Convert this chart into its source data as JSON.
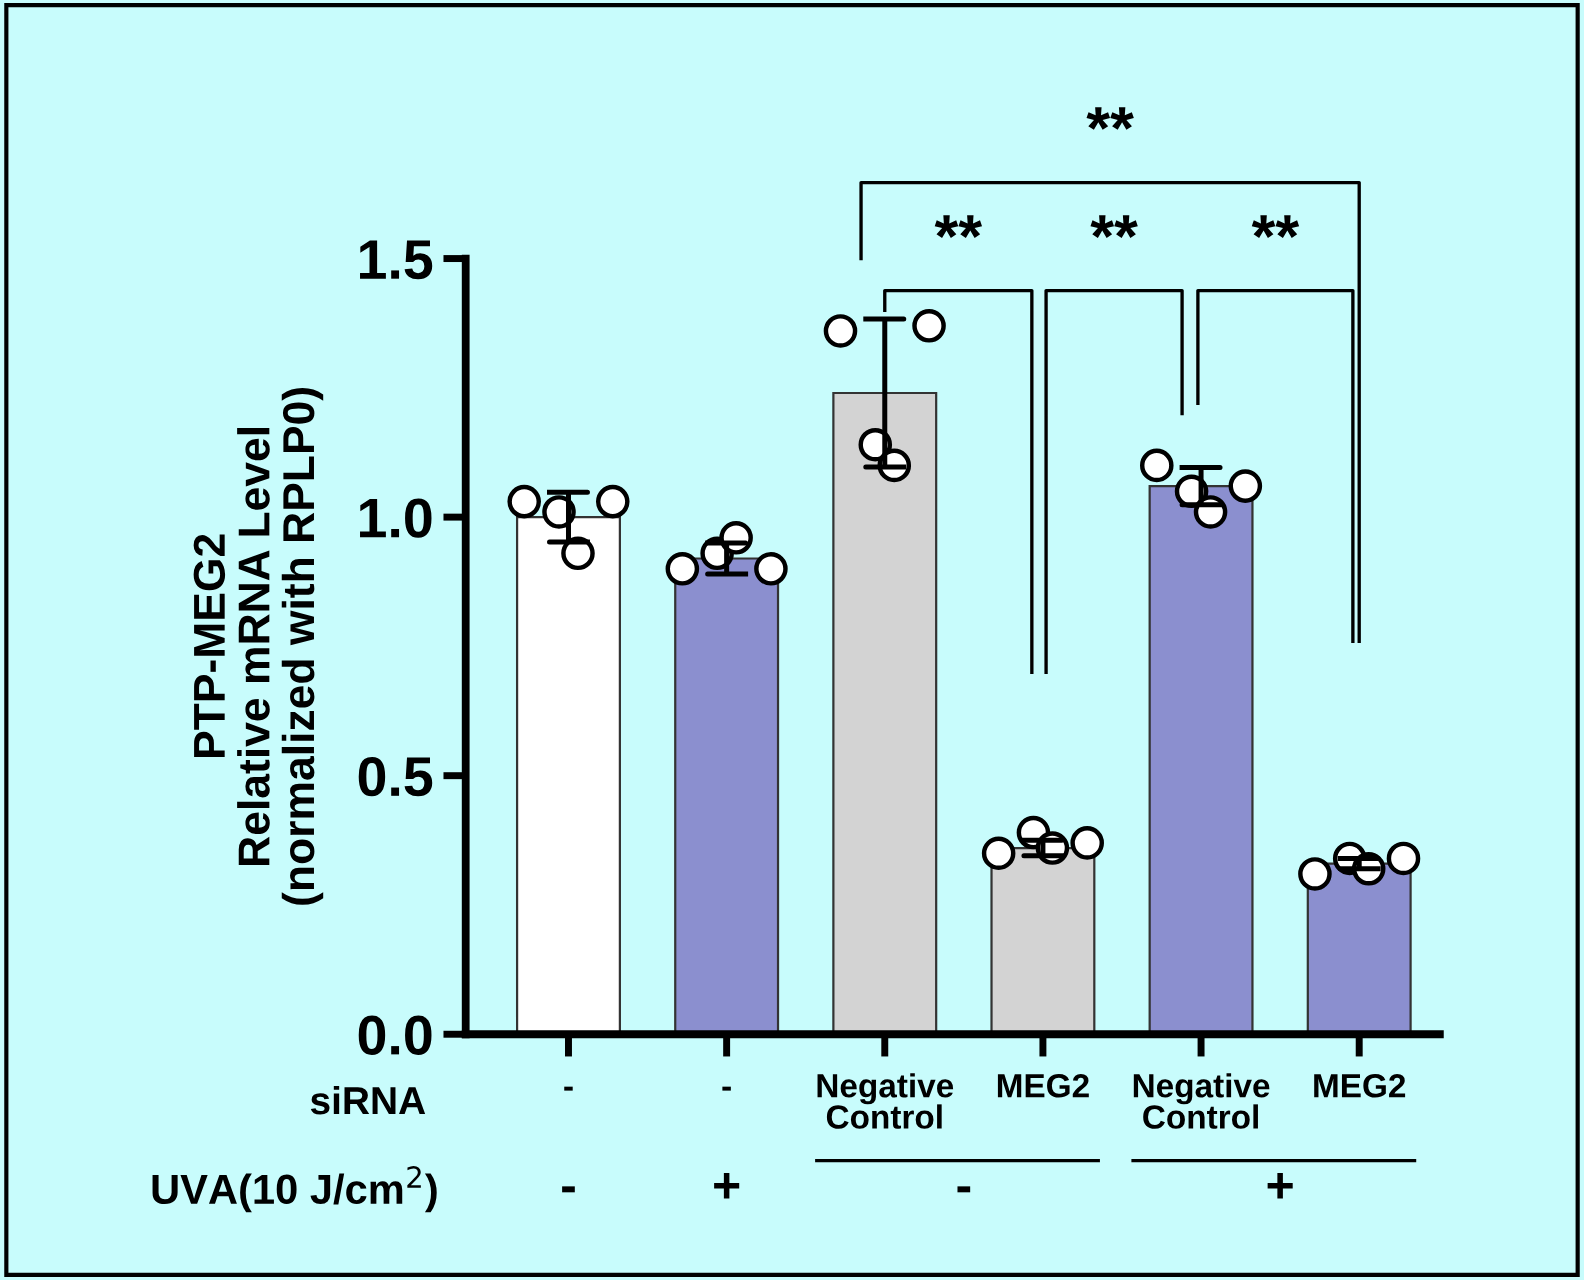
{
  "chart_data": {
    "type": "bar",
    "ylabel": "PTP-MEG2\nRelative mRNA Level\n(normalized with RPLP0)",
    "xlabel": "siRNA",
    "categories": [
      "-",
      "-",
      "Negative\nControl",
      "MEG2",
      "Negative\nControl",
      "MEG2"
    ],
    "series": [
      {
        "values": [
          1.0,
          0.92,
          1.24,
          0.36,
          1.06,
          0.33
        ],
        "colors": [
          "#ffffff",
          "#8b8fcf",
          "#d3d3d3",
          "#d3d3d3",
          "#8b8fcf",
          "#8b8fcf"
        ],
        "errors": [
          0.048,
          0.03,
          0.143,
          0.015,
          0.036,
          0.01
        ]
      },
      {
        "type": "scatter",
        "color": "#ffffff",
        "values": [
          1.03,
          0.9,
          1.36,
          0.35,
          1.1,
          0.31
        ]
      },
      {
        "type": "scatter",
        "color": "#ffffff",
        "values": [
          1.01,
          0.93,
          1.14,
          0.39,
          1.05,
          0.34
        ]
      },
      {
        "type": "scatter",
        "color": "#ffffff",
        "values": [
          0.93,
          0.96,
          1.1,
          0.36,
          1.01,
          0.32
        ]
      },
      {
        "type": "scatter",
        "color": "#ffffff",
        "values": [
          1.03,
          0.9,
          1.37,
          0.37,
          1.06,
          0.34
        ]
      }
    ],
    "ylim": [
      0,
      1.5
    ],
    "yticks": [
      {
        "value": 0,
        "label": "0.0"
      },
      {
        "value": 0.5,
        "label": "0.5"
      },
      {
        "value": 1.0,
        "label": "1.0"
      },
      {
        "value": 1.5,
        "label": "1.5"
      }
    ],
    "grid": false,
    "legend": false,
    "marker": "circle",
    "annotations": [
      "UVA(10 J/cm$^{2}$)",
      "-",
      "+",
      "-",
      "+",
      "**",
      "**",
      "**",
      "**"
    ]
  }
}
